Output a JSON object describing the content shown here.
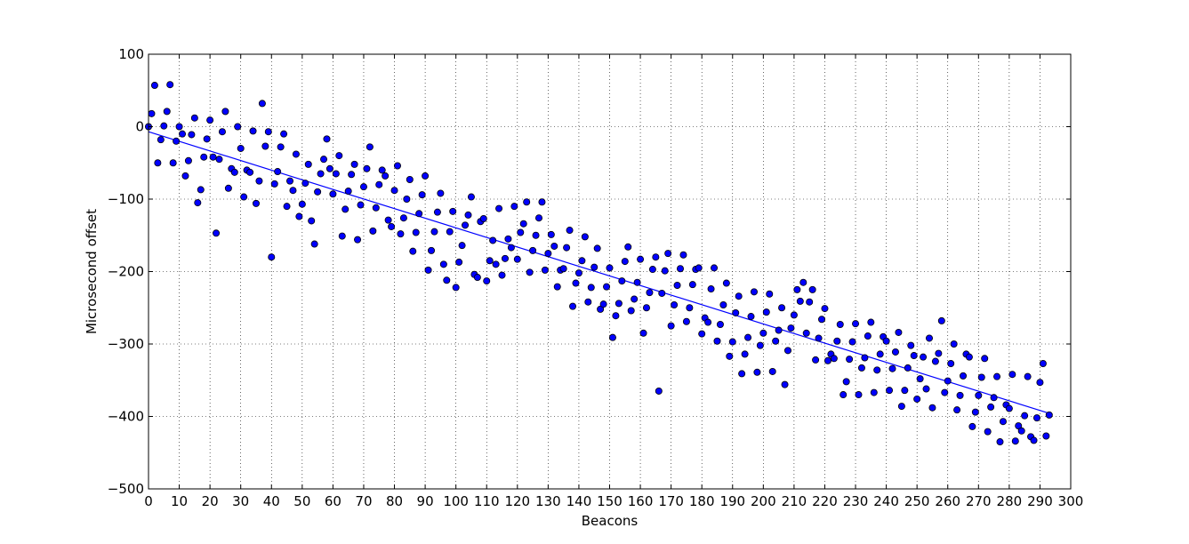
{
  "chart_data": {
    "type": "scatter",
    "title": "",
    "xlabel": "Beacons",
    "ylabel": "Microsecond offset",
    "xlim": [
      0,
      300
    ],
    "ylim": [
      -500,
      100
    ],
    "xticks": [
      0,
      10,
      20,
      30,
      40,
      50,
      60,
      70,
      80,
      90,
      100,
      110,
      120,
      130,
      140,
      150,
      160,
      170,
      180,
      190,
      200,
      210,
      220,
      230,
      240,
      250,
      260,
      270,
      280,
      290,
      300
    ],
    "xtick_labels": [
      "0",
      "10",
      "20",
      "30",
      "40",
      "50",
      "60",
      "70",
      "80",
      "90",
      "100",
      "110",
      "120",
      "130",
      "140",
      "150",
      "160",
      "170",
      "180",
      "190",
      "200",
      "210",
      "220",
      "230",
      "240",
      "250",
      "260",
      "270",
      "280",
      "290",
      "300"
    ],
    "yticks": [
      100,
      0,
      -100,
      -200,
      -300,
      -400,
      -500
    ],
    "ytick_labels": [
      "100",
      "0",
      "−100",
      "−200",
      "−300",
      "−400",
      "−500"
    ],
    "grid": true,
    "grid_style": "dotted",
    "marker_color": "#0000ff",
    "marker_edge_color": "#000000",
    "line_color": "#0000ff",
    "fit_line": {
      "x": [
        0,
        294
      ],
      "y": [
        -7,
        -397
      ]
    },
    "points": [
      [
        0,
        0
      ],
      [
        1,
        18
      ],
      [
        2,
        57
      ],
      [
        3,
        -50
      ],
      [
        4,
        -18
      ],
      [
        5,
        1
      ],
      [
        6,
        21
      ],
      [
        7,
        58
      ],
      [
        8,
        -50
      ],
      [
        9,
        -20
      ],
      [
        10,
        0
      ],
      [
        11,
        -10
      ],
      [
        12,
        -68
      ],
      [
        13,
        -47
      ],
      [
        14,
        -11
      ],
      [
        15,
        12
      ],
      [
        16,
        -105
      ],
      [
        17,
        -87
      ],
      [
        18,
        -42
      ],
      [
        19,
        -17
      ],
      [
        20,
        9
      ],
      [
        21,
        -42
      ],
      [
        22,
        -147
      ],
      [
        23,
        -45
      ],
      [
        24,
        -7
      ],
      [
        25,
        21
      ],
      [
        26,
        -85
      ],
      [
        27,
        -58
      ],
      [
        28,
        -63
      ],
      [
        29,
        0
      ],
      [
        30,
        -30
      ],
      [
        31,
        -97
      ],
      [
        32,
        -60
      ],
      [
        33,
        -63
      ],
      [
        34,
        -6
      ],
      [
        35,
        -106
      ],
      [
        36,
        -75
      ],
      [
        37,
        32
      ],
      [
        38,
        -27
      ],
      [
        39,
        -7
      ],
      [
        40,
        -180
      ],
      [
        41,
        -79
      ],
      [
        42,
        -62
      ],
      [
        43,
        -28
      ],
      [
        44,
        -10
      ],
      [
        45,
        -110
      ],
      [
        46,
        -75
      ],
      [
        47,
        -88
      ],
      [
        48,
        -38
      ],
      [
        49,
        -124
      ],
      [
        50,
        -107
      ],
      [
        51,
        -78
      ],
      [
        52,
        -52
      ],
      [
        53,
        -130
      ],
      [
        54,
        -162
      ],
      [
        55,
        -90
      ],
      [
        56,
        -65
      ],
      [
        57,
        -45
      ],
      [
        58,
        -17
      ],
      [
        59,
        -58
      ],
      [
        60,
        -93
      ],
      [
        61,
        -65
      ],
      [
        62,
        -40
      ],
      [
        63,
        -151
      ],
      [
        64,
        -114
      ],
      [
        65,
        -89
      ],
      [
        66,
        -66
      ],
      [
        67,
        -52
      ],
      [
        68,
        -156
      ],
      [
        69,
        -108
      ],
      [
        70,
        -83
      ],
      [
        71,
        -58
      ],
      [
        72,
        -28
      ],
      [
        73,
        -144
      ],
      [
        74,
        -112
      ],
      [
        75,
        -80
      ],
      [
        76,
        -60
      ],
      [
        77,
        -68
      ],
      [
        78,
        -129
      ],
      [
        79,
        -138
      ],
      [
        80,
        -88
      ],
      [
        81,
        -54
      ],
      [
        82,
        -148
      ],
      [
        83,
        -126
      ],
      [
        84,
        -100
      ],
      [
        85,
        -73
      ],
      [
        86,
        -172
      ],
      [
        87,
        -146
      ],
      [
        88,
        -120
      ],
      [
        89,
        -94
      ],
      [
        90,
        -68
      ],
      [
        91,
        -198
      ],
      [
        92,
        -171
      ],
      [
        93,
        -145
      ],
      [
        94,
        -118
      ],
      [
        95,
        -92
      ],
      [
        96,
        -190
      ],
      [
        97,
        -212
      ],
      [
        98,
        -145
      ],
      [
        99,
        -117
      ],
      [
        100,
        -222
      ],
      [
        101,
        -187
      ],
      [
        102,
        -164
      ],
      [
        103,
        -136
      ],
      [
        104,
        -122
      ],
      [
        105,
        -97
      ],
      [
        106,
        -204
      ],
      [
        107,
        -208
      ],
      [
        108,
        -131
      ],
      [
        109,
        -127
      ],
      [
        110,
        -213
      ],
      [
        111,
        -185
      ],
      [
        112,
        -157
      ],
      [
        113,
        -190
      ],
      [
        114,
        -113
      ],
      [
        115,
        -205
      ],
      [
        116,
        -182
      ],
      [
        117,
        -155
      ],
      [
        118,
        -167
      ],
      [
        119,
        -110
      ],
      [
        120,
        -183
      ],
      [
        121,
        -146
      ],
      [
        122,
        -134
      ],
      [
        123,
        -104
      ],
      [
        124,
        -201
      ],
      [
        125,
        -171
      ],
      [
        126,
        -150
      ],
      [
        127,
        -126
      ],
      [
        128,
        -104
      ],
      [
        129,
        -198
      ],
      [
        130,
        -175
      ],
      [
        131,
        -149
      ],
      [
        132,
        -165
      ],
      [
        133,
        -221
      ],
      [
        134,
        -198
      ],
      [
        135,
        -196
      ],
      [
        136,
        -167
      ],
      [
        137,
        -143
      ],
      [
        138,
        -248
      ],
      [
        139,
        -216
      ],
      [
        140,
        -202
      ],
      [
        141,
        -185
      ],
      [
        142,
        -152
      ],
      [
        143,
        -242
      ],
      [
        144,
        -222
      ],
      [
        145,
        -194
      ],
      [
        146,
        -168
      ],
      [
        147,
        -252
      ],
      [
        148,
        -245
      ],
      [
        149,
        -221
      ],
      [
        150,
        -195
      ],
      [
        151,
        -291
      ],
      [
        152,
        -261
      ],
      [
        153,
        -244
      ],
      [
        154,
        -213
      ],
      [
        155,
        -186
      ],
      [
        156,
        -166
      ],
      [
        157,
        -254
      ],
      [
        158,
        -238
      ],
      [
        159,
        -215
      ],
      [
        160,
        -183
      ],
      [
        161,
        -285
      ],
      [
        162,
        -250
      ],
      [
        163,
        -229
      ],
      [
        164,
        -197
      ],
      [
        165,
        -180
      ],
      [
        166,
        -365
      ],
      [
        167,
        -230
      ],
      [
        168,
        -199
      ],
      [
        169,
        -175
      ],
      [
        170,
        -275
      ],
      [
        171,
        -246
      ],
      [
        172,
        -219
      ],
      [
        173,
        -196
      ],
      [
        174,
        -177
      ],
      [
        175,
        -269
      ],
      [
        176,
        -250
      ],
      [
        177,
        -218
      ],
      [
        178,
        -197
      ],
      [
        179,
        -195
      ],
      [
        180,
        -286
      ],
      [
        181,
        -264
      ],
      [
        182,
        -270
      ],
      [
        183,
        -224
      ],
      [
        184,
        -195
      ],
      [
        185,
        -296
      ],
      [
        186,
        -273
      ],
      [
        187,
        -246
      ],
      [
        188,
        -216
      ],
      [
        189,
        -317
      ],
      [
        190,
        -297
      ],
      [
        191,
        -257
      ],
      [
        192,
        -234
      ],
      [
        193,
        -341
      ],
      [
        194,
        -314
      ],
      [
        195,
        -291
      ],
      [
        196,
        -262
      ],
      [
        197,
        -228
      ],
      [
        198,
        -339
      ],
      [
        199,
        -302
      ],
      [
        200,
        -285
      ],
      [
        201,
        -256
      ],
      [
        202,
        -231
      ],
      [
        203,
        -338
      ],
      [
        204,
        -296
      ],
      [
        205,
        -281
      ],
      [
        206,
        -250
      ],
      [
        207,
        -356
      ],
      [
        208,
        -309
      ],
      [
        209,
        -278
      ],
      [
        210,
        -260
      ],
      [
        211,
        -225
      ],
      [
        212,
        -241
      ],
      [
        213,
        -215
      ],
      [
        214,
        -285
      ],
      [
        215,
        -242
      ],
      [
        216,
        -225
      ],
      [
        217,
        -322
      ],
      [
        218,
        -292
      ],
      [
        219,
        -266
      ],
      [
        220,
        -251
      ],
      [
        221,
        -323
      ],
      [
        222,
        -314
      ],
      [
        223,
        -320
      ],
      [
        224,
        -296
      ],
      [
        225,
        -273
      ],
      [
        226,
        -370
      ],
      [
        227,
        -352
      ],
      [
        228,
        -321
      ],
      [
        229,
        -297
      ],
      [
        230,
        -272
      ],
      [
        231,
        -370
      ],
      [
        232,
        -333
      ],
      [
        233,
        -319
      ],
      [
        234,
        -289
      ],
      [
        235,
        -270
      ],
      [
        236,
        -367
      ],
      [
        237,
        -336
      ],
      [
        238,
        -314
      ],
      [
        239,
        -290
      ],
      [
        240,
        -296
      ],
      [
        241,
        -364
      ],
      [
        242,
        -334
      ],
      [
        243,
        -311
      ],
      [
        244,
        -284
      ],
      [
        245,
        -386
      ],
      [
        246,
        -364
      ],
      [
        247,
        -333
      ],
      [
        248,
        -302
      ],
      [
        249,
        -316
      ],
      [
        250,
        -376
      ],
      [
        251,
        -348
      ],
      [
        252,
        -318
      ],
      [
        253,
        -362
      ],
      [
        254,
        -292
      ],
      [
        255,
        -388
      ],
      [
        256,
        -324
      ],
      [
        257,
        -313
      ],
      [
        258,
        -268
      ],
      [
        259,
        -367
      ],
      [
        260,
        -351
      ],
      [
        261,
        -327
      ],
      [
        262,
        -300
      ],
      [
        263,
        -391
      ],
      [
        264,
        -371
      ],
      [
        265,
        -344
      ],
      [
        266,
        -314
      ],
      [
        267,
        -318
      ],
      [
        268,
        -414
      ],
      [
        269,
        -394
      ],
      [
        270,
        -371
      ],
      [
        271,
        -346
      ],
      [
        272,
        -320
      ],
      [
        273,
        -421
      ],
      [
        274,
        -387
      ],
      [
        275,
        -374
      ],
      [
        276,
        -345
      ],
      [
        277,
        -435
      ],
      [
        278,
        -407
      ],
      [
        279,
        -384
      ],
      [
        280,
        -389
      ],
      [
        281,
        -342
      ],
      [
        282,
        -434
      ],
      [
        283,
        -413
      ],
      [
        284,
        -420
      ],
      [
        285,
        -399
      ],
      [
        286,
        -345
      ],
      [
        287,
        -428
      ],
      [
        288,
        -433
      ],
      [
        289,
        -402
      ],
      [
        290,
        -353
      ],
      [
        291,
        -327
      ],
      [
        292,
        -427
      ],
      [
        293,
        -398
      ]
    ]
  }
}
